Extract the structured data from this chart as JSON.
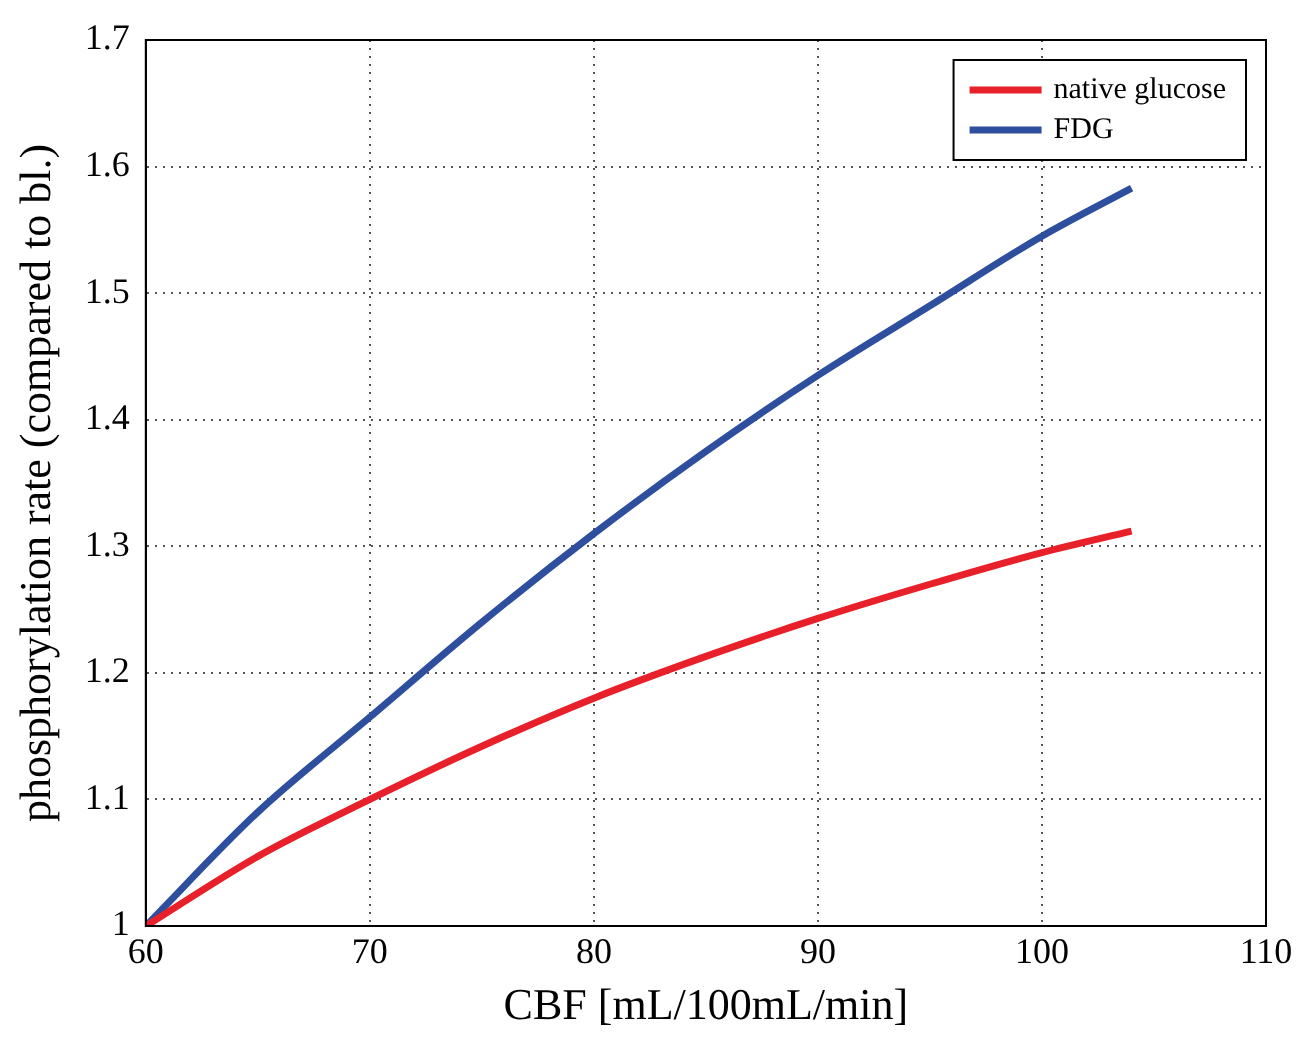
{
  "chart_data": {
    "type": "line",
    "xlabel": "CBF [mL/100mL/min]",
    "ylabel": "phosphorylation rate (compared to bl.)",
    "x": [
      60,
      65,
      70,
      75,
      80,
      85,
      90,
      95,
      100,
      104
    ],
    "series": [
      {
        "name": "native glucose",
        "color": "#e8202a",
        "values": [
          1,
          1.055,
          1.1,
          1.142,
          1.18,
          1.213,
          1.243,
          1.27,
          1.295,
          1.312
        ]
      },
      {
        "name": "FDG",
        "color": "#2e4f9e",
        "values": [
          1,
          1.09,
          1.165,
          1.24,
          1.31,
          1.375,
          1.435,
          1.49,
          1.545,
          1.583
        ]
      }
    ],
    "xlim": [
      60,
      110
    ],
    "xticks": [
      60,
      70,
      80,
      90,
      100,
      110
    ],
    "ylim": [
      1,
      1.7
    ],
    "yticks": [
      1,
      1.1,
      1.2,
      1.3,
      1.4,
      1.5,
      1.6,
      1.7
    ],
    "grid": true,
    "legend": "top right",
    "marker": "none",
    "line_style": "solid"
  }
}
